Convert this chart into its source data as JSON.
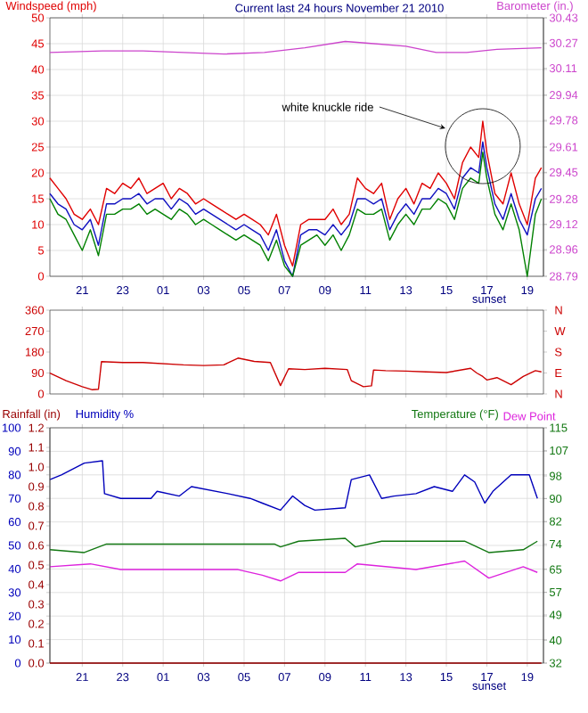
{
  "chart_data": [
    {
      "type": "line",
      "title": "Current last 24 hours November 21 2010",
      "ylabel": "Windspeed (mph)",
      "y2label": "Barometer (in.)",
      "x": [
        "2010-11-20T19:24",
        "2010-11-20T19:48",
        "2010-11-20T20:12",
        "2010-11-20T20:36",
        "2010-11-20T21:00",
        "2010-11-20T21:24",
        "2010-11-20T21:48",
        "2010-11-20T22:12",
        "2010-11-20T22:36",
        "2010-11-20T23:00",
        "2010-11-20T23:24",
        "2010-11-20T23:48",
        "2010-11-21T00:12",
        "2010-11-21T00:36",
        "2010-11-21T01:00",
        "2010-11-21T01:24",
        "2010-11-21T01:48",
        "2010-11-21T02:12",
        "2010-11-21T02:36",
        "2010-11-21T03:00",
        "2010-11-21T03:24",
        "2010-11-21T03:48",
        "2010-11-21T04:12",
        "2010-11-21T04:36",
        "2010-11-21T05:00",
        "2010-11-21T05:24",
        "2010-11-21T05:48",
        "2010-11-21T06:12",
        "2010-11-21T06:36",
        "2010-11-21T07:00",
        "2010-11-21T07:24",
        "2010-11-21T07:48",
        "2010-11-21T08:12",
        "2010-11-21T08:36",
        "2010-11-21T09:00",
        "2010-11-21T09:24",
        "2010-11-21T09:48",
        "2010-11-21T10:12",
        "2010-11-21T10:36",
        "2010-11-21T11:00",
        "2010-11-21T11:24",
        "2010-11-21T11:48",
        "2010-11-21T12:12",
        "2010-11-21T12:36",
        "2010-11-21T13:00",
        "2010-11-21T13:24",
        "2010-11-21T13:48",
        "2010-11-21T14:12",
        "2010-11-21T14:36",
        "2010-11-21T15:00",
        "2010-11-21T15:24",
        "2010-11-21T15:48",
        "2010-11-21T16:12",
        "2010-11-21T16:36",
        "2010-11-21T16:48",
        "2010-11-21T17:00",
        "2010-11-21T17:24",
        "2010-11-21T17:48",
        "2010-11-21T18:12",
        "2010-11-21T18:36",
        "2010-11-21T19:00",
        "2010-11-21T19:24",
        "2010-11-21T19:42"
      ],
      "xlim": [
        "2010-11-20T19:24",
        "2010-11-21T19:48"
      ],
      "xticks": [
        {
          "value": "2010-11-20T21:00",
          "label": "21"
        },
        {
          "value": "2010-11-20T23:00",
          "label": "23"
        },
        {
          "value": "2010-11-21T01:00",
          "label": "01"
        },
        {
          "value": "2010-11-21T03:00",
          "label": "03"
        },
        {
          "value": "2010-11-21T05:00",
          "label": "05"
        },
        {
          "value": "2010-11-21T07:00",
          "label": "07"
        },
        {
          "value": "2010-11-21T09:00",
          "label": "09"
        },
        {
          "value": "2010-11-21T11:00",
          "label": "11"
        },
        {
          "value": "2010-11-21T13:00",
          "label": "13"
        },
        {
          "value": "2010-11-21T15:00",
          "label": "15"
        },
        {
          "value": "2010-11-21T17:00",
          "label": "17"
        },
        {
          "value": "2010-11-21T19:00",
          "label": "19"
        }
      ],
      "ylim": [
        0,
        50
      ],
      "yticks": [
        0,
        5,
        10,
        15,
        20,
        25,
        30,
        35,
        40,
        45,
        50
      ],
      "y2lim": [
        28.79,
        30.43
      ],
      "y2ticks": [
        28.79,
        28.96,
        29.12,
        29.28,
        29.45,
        29.61,
        29.78,
        29.94,
        30.11,
        30.27,
        30.43
      ],
      "grid": true,
      "series": [
        {
          "color": "#e00000",
          "values": [
            19,
            17,
            15,
            12,
            11,
            13,
            10,
            17,
            16,
            18,
            17,
            19,
            16,
            17,
            18,
            15,
            17,
            16,
            14,
            15,
            14,
            13,
            12,
            11,
            12,
            11,
            10,
            8,
            12,
            6,
            2,
            10,
            11,
            11,
            11,
            13,
            10,
            12,
            19,
            17,
            16,
            18,
            11,
            15,
            17,
            14,
            18,
            17,
            20,
            18,
            15,
            22,
            25,
            23,
            30,
            24,
            16,
            14,
            20,
            14,
            10,
            19,
            21
          ]
        },
        {
          "color": "#1010c0",
          "values": [
            16,
            14,
            13,
            10,
            9,
            11,
            6,
            14,
            14,
            15,
            15,
            16,
            14,
            15,
            15,
            13,
            15,
            14,
            12,
            13,
            12,
            11,
            10,
            9,
            10,
            9,
            8,
            5,
            9,
            3,
            0,
            8,
            9,
            9,
            8,
            10,
            8,
            10,
            15,
            15,
            14,
            15,
            9,
            12,
            14,
            12,
            15,
            15,
            17,
            16,
            13,
            19,
            21,
            20,
            26,
            21,
            14,
            11,
            16,
            11,
            8,
            15,
            17
          ]
        },
        {
          "color": "#008000",
          "values": [
            15,
            12,
            11,
            8,
            5,
            9,
            4,
            12,
            12,
            13,
            13,
            14,
            12,
            13,
            12,
            11,
            13,
            12,
            10,
            11,
            10,
            9,
            8,
            7,
            8,
            7,
            6,
            3,
            7,
            2,
            0,
            6,
            7,
            8,
            6,
            8,
            5,
            8,
            13,
            12,
            12,
            13,
            7,
            10,
            12,
            10,
            13,
            13,
            15,
            14,
            11,
            17,
            19,
            18,
            24,
            19,
            12,
            9,
            14,
            9,
            0,
            12,
            15
          ]
        },
        {
          "color": "#cc44cc",
          "axis": "y2",
          "x": [
            "2010-11-20T19:24",
            "2010-11-20T22:00",
            "2010-11-21T00:00",
            "2010-11-21T02:00",
            "2010-11-21T04:00",
            "2010-11-21T06:00",
            "2010-11-21T08:00",
            "2010-11-21T10:00",
            "2010-11-21T11:00",
            "2010-11-21T13:00",
            "2010-11-21T14:30",
            "2010-11-21T16:00",
            "2010-11-21T17:30",
            "2010-11-21T19:42"
          ],
          "values": [
            30.21,
            30.22,
            30.22,
            30.21,
            30.2,
            30.21,
            30.24,
            30.28,
            30.27,
            30.25,
            30.21,
            30.21,
            30.23,
            30.24
          ]
        }
      ],
      "annotations": [
        "white knuckle ride",
        "sunset"
      ]
    },
    {
      "type": "line",
      "x": [
        "2010-11-20T19:24",
        "2010-11-20T20:12",
        "2010-11-20T21:00",
        "2010-11-20T21:30",
        "2010-11-20T21:48",
        "2010-11-20T21:57",
        "2010-11-20T23:00",
        "2010-11-21T00:00",
        "2010-11-21T01:00",
        "2010-11-21T02:00",
        "2010-11-21T03:00",
        "2010-11-21T04:00",
        "2010-11-21T04:42",
        "2010-11-21T05:30",
        "2010-11-21T06:18",
        "2010-11-21T06:48",
        "2010-11-21T07:12",
        "2010-11-21T08:00",
        "2010-11-21T09:00",
        "2010-11-21T10:06",
        "2010-11-21T10:18",
        "2010-11-21T10:54",
        "2010-11-21T11:18",
        "2010-11-21T11:24",
        "2010-11-21T12:00",
        "2010-11-21T13:00",
        "2010-11-21T14:00",
        "2010-11-21T15:00",
        "2010-11-21T16:12",
        "2010-11-21T16:30",
        "2010-11-21T16:48",
        "2010-11-21T17:00",
        "2010-11-21T17:30",
        "2010-11-21T18:12",
        "2010-11-21T18:48",
        "2010-11-21T19:24",
        "2010-11-21T19:42"
      ],
      "xlim": [
        "2010-11-20T19:24",
        "2010-11-21T19:48"
      ],
      "xticks": [
        {
          "value": "2010-11-20T21:00",
          "label": null
        },
        {
          "value": "2010-11-20T23:00",
          "label": null
        },
        {
          "value": "2010-11-21T01:00",
          "label": null
        },
        {
          "value": "2010-11-21T03:00",
          "label": null
        },
        {
          "value": "2010-11-21T05:00",
          "label": null
        },
        {
          "value": "2010-11-21T07:00",
          "label": null
        },
        {
          "value": "2010-11-21T09:00",
          "label": null
        },
        {
          "value": "2010-11-21T11:00",
          "label": null
        },
        {
          "value": "2010-11-21T13:00",
          "label": null
        },
        {
          "value": "2010-11-21T15:00",
          "label": null
        },
        {
          "value": "2010-11-21T17:00",
          "label": null
        },
        {
          "value": "2010-11-21T19:00",
          "label": null
        }
      ],
      "tick_labels": "y",
      "ylim": [
        0,
        360
      ],
      "yticks": [
        0,
        90,
        180,
        270,
        360
      ],
      "grid": "x",
      "series": [
        {
          "color": "#cc0000",
          "values": [
            90,
            57,
            31,
            18,
            20,
            139,
            135,
            135,
            130,
            125,
            122,
            125,
            154,
            140,
            135,
            36,
            108,
            105,
            110,
            105,
            57,
            31,
            35,
            103,
            100,
            98,
            95,
            92,
            110,
            90,
            75,
            60,
            70,
            40,
            75,
            100,
            95
          ]
        }
      ],
      "annotations": [
        "N",
        "E",
        "S",
        "W",
        "N"
      ]
    },
    {
      "type": "line",
      "xlim": [
        "2010-11-20T19:24",
        "2010-11-21T19:48"
      ],
      "xticks": [
        {
          "value": "2010-11-20T21:00",
          "label": "21"
        },
        {
          "value": "2010-11-20T23:00",
          "label": "23"
        },
        {
          "value": "2010-11-21T01:00",
          "label": "01"
        },
        {
          "value": "2010-11-21T03:00",
          "label": "03"
        },
        {
          "value": "2010-11-21T05:00",
          "label": "05"
        },
        {
          "value": "2010-11-21T07:00",
          "label": "07"
        },
        {
          "value": "2010-11-21T09:00",
          "label": "09"
        },
        {
          "value": "2010-11-21T11:00",
          "label": "11"
        },
        {
          "value": "2010-11-21T13:00",
          "label": "13"
        },
        {
          "value": "2010-11-21T15:00",
          "label": "15"
        },
        {
          "value": "2010-11-21T17:00",
          "label": "17"
        },
        {
          "value": "2010-11-21T19:00",
          "label": "19"
        }
      ],
      "ylim": [
        0,
        100
      ],
      "yticks": [
        0,
        10,
        20,
        30,
        40,
        50,
        60,
        70,
        80,
        90,
        100
      ],
      "y2lim": [
        32,
        115
      ],
      "y2ticks": [
        32,
        40,
        49,
        57,
        65,
        74,
        82,
        90,
        98,
        107,
        115
      ],
      "y3lim": [
        0,
        1.2
      ],
      "y3ticks": [
        {
          "value": 0,
          "label": "0.0"
        },
        0.1,
        0.2,
        0.3,
        0.4,
        0.5,
        0.6,
        0.7,
        0.8,
        0.9,
        {
          "value": 1,
          "label": "1.0"
        },
        1.1,
        1.2
      ],
      "grid": true,
      "legend": "top",
      "series": [
        {
          "name": "Rainfall (in)",
          "color": "#990000",
          "axis": "y3",
          "x": [
            "2010-11-20T19:24",
            "2010-11-21T19:42"
          ],
          "values": [
            0,
            0
          ]
        },
        {
          "name": "Humidity %",
          "color": "#0000bb",
          "x": [
            "2010-11-20T19:24",
            "2010-11-20T19:58",
            "2010-11-20T21:06",
            "2010-11-20T22:00",
            "2010-11-20T22:06",
            "2010-11-20T22:54",
            "2010-11-21T00:24",
            "2010-11-21T00:42",
            "2010-11-21T01:48",
            "2010-11-21T02:24",
            "2010-11-21T04:12",
            "2010-11-21T05:18",
            "2010-11-21T05:54",
            "2010-11-21T06:48",
            "2010-11-21T07:24",
            "2010-11-21T08:00",
            "2010-11-21T08:30",
            "2010-11-21T10:00",
            "2010-11-21T10:18",
            "2010-11-21T11:12",
            "2010-11-21T11:48",
            "2010-11-21T12:24",
            "2010-11-21T13:30",
            "2010-11-21T14:24",
            "2010-11-21T15:18",
            "2010-11-21T15:54",
            "2010-11-21T16:24",
            "2010-11-21T16:54",
            "2010-11-21T17:18",
            "2010-11-21T18:12",
            "2010-11-21T19:06",
            "2010-11-21T19:30"
          ],
          "values": [
            78,
            80,
            85,
            86,
            72,
            70,
            70,
            73,
            71,
            75,
            72,
            70,
            68,
            65,
            71,
            67,
            65,
            66,
            78,
            80,
            70,
            71,
            72,
            75,
            73,
            80,
            77,
            68,
            73,
            80,
            80,
            70
          ]
        },
        {
          "name": "Temperature (°F)",
          "color": "#117711",
          "axis": "y2",
          "x": [
            "2010-11-20T19:24",
            "2010-11-20T21:06",
            "2010-11-20T22:12",
            "2010-11-21T01:48",
            "2010-11-21T06:30",
            "2010-11-21T06:48",
            "2010-11-21T07:42",
            "2010-11-21T10:00",
            "2010-11-21T10:30",
            "2010-11-21T11:48",
            "2010-11-21T15:54",
            "2010-11-21T17:06",
            "2010-11-21T18:48",
            "2010-11-21T19:30"
          ],
          "values": [
            72,
            71,
            74,
            74,
            74,
            73,
            75,
            76,
            73,
            75,
            75,
            71,
            72,
            75
          ]
        },
        {
          "name": "Dew Point",
          "color": "#dd22dd",
          "axis": "y2",
          "x": [
            "2010-11-20T19:24",
            "2010-11-20T21:24",
            "2010-11-20T22:54",
            "2010-11-21T01:48",
            "2010-11-21T04:42",
            "2010-11-21T05:54",
            "2010-11-21T06:48",
            "2010-11-21T07:42",
            "2010-11-21T10:00",
            "2010-11-21T10:36",
            "2010-11-21T13:30",
            "2010-11-21T15:54",
            "2010-11-21T17:06",
            "2010-11-21T18:48",
            "2010-11-21T19:30"
          ],
          "values": [
            66,
            67,
            65,
            65,
            65,
            63,
            61,
            64,
            64,
            67,
            65,
            68,
            62,
            66,
            64
          ]
        }
      ],
      "annotations": [
        "sunset"
      ]
    }
  ]
}
